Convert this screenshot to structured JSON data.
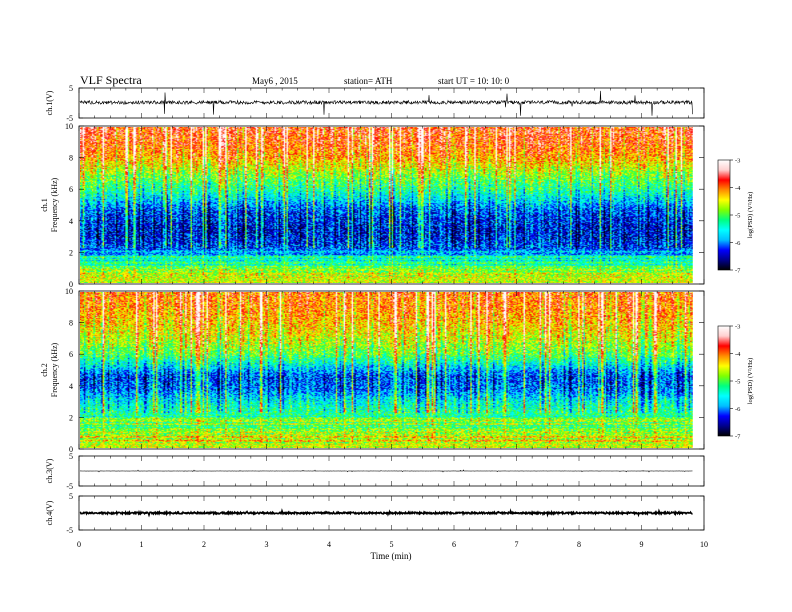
{
  "header": {
    "title": "VLF  Spectra",
    "date": "May6  , 2015",
    "station": "station= ATH",
    "start": "start  UT  =    10: 10: 0"
  },
  "colors": {
    "ink": "#000000",
    "colormap": [
      "#000000",
      "#00008b",
      "#0000ff",
      "#00bfff",
      "#00ffff",
      "#00ff80",
      "#7fff00",
      "#ffff00",
      "#ff8c00",
      "#ff0000",
      "#ffd0d0",
      "#ffffff"
    ]
  },
  "chart_data": [
    {
      "id": "ch1-waveform",
      "type": "line",
      "ylabel": "ch.1(V)",
      "ylim": [
        -5,
        5
      ],
      "yticks": [
        "5",
        "-5"
      ],
      "xlim": [
        0,
        10
      ],
      "data_end_min": 9.82,
      "mean_level_V": 0.2,
      "noise_amplitude_V": 0.6,
      "spike_amplitude_V": 3
    },
    {
      "id": "ch1-spectrogram",
      "type": "heatmap",
      "ylabel": "ch.1\nFrequency (kHz)",
      "ylim": [
        0,
        10
      ],
      "yticks": [
        "0",
        "2",
        "4",
        "6",
        "8",
        "10"
      ],
      "xlim": [
        0,
        10
      ],
      "data_end_min": 9.82,
      "colorbar": {
        "label": "log(PSD) (V²/Hz)",
        "range": [
          -7,
          -3
        ],
        "ticks": [
          "-3",
          "-4",
          "-5",
          "-6",
          "-7"
        ]
      },
      "profile_khz_vs_logpsd": [
        [
          0,
          -4.5
        ],
        [
          0.8,
          -5.0
        ],
        [
          1.6,
          -5.4
        ],
        [
          2.2,
          -6.2
        ],
        [
          3.0,
          -6.4
        ],
        [
          3.6,
          -6.4
        ],
        [
          4.6,
          -6.2
        ],
        [
          5.2,
          -5.8
        ],
        [
          6.0,
          -5.3
        ],
        [
          7.0,
          -4.8
        ],
        [
          8.0,
          -4.2
        ],
        [
          9.0,
          -3.9
        ],
        [
          10,
          -3.8
        ]
      ]
    },
    {
      "id": "ch2-spectrogram",
      "type": "heatmap",
      "ylabel": "ch.2\nFrequency (kHz)",
      "ylim": [
        0,
        10
      ],
      "yticks": [
        "0",
        "2",
        "4",
        "6",
        "8",
        "10"
      ],
      "xlim": [
        0,
        10
      ],
      "data_end_min": 9.82,
      "colorbar": {
        "label": "log(PSD) (V²/Hz)",
        "range": [
          -7,
          -3
        ],
        "ticks": [
          "-3",
          "-4",
          "-5",
          "-6",
          "-7"
        ]
      },
      "profile_khz_vs_logpsd": [
        [
          0,
          -4.4
        ],
        [
          1.0,
          -4.8
        ],
        [
          2.0,
          -5.2
        ],
        [
          3.0,
          -5.6
        ],
        [
          3.8,
          -6.1
        ],
        [
          4.6,
          -6.2
        ],
        [
          5.2,
          -5.7
        ],
        [
          6.0,
          -5.0
        ],
        [
          7.0,
          -4.6
        ],
        [
          8.0,
          -4.3
        ],
        [
          9.0,
          -4.1
        ],
        [
          10,
          -4.0
        ]
      ]
    },
    {
      "id": "ch3-waveform",
      "type": "line",
      "ylabel": "ch.3(V)",
      "ylim": [
        -5,
        5
      ],
      "yticks": [
        "5",
        "-5"
      ],
      "xlim": [
        0,
        10
      ],
      "data_end_min": 9.82,
      "mean_level_V": 0.0,
      "noise_amplitude_V": 0.05,
      "spike_amplitude_V": 0.2
    },
    {
      "id": "ch4-waveform",
      "type": "line",
      "ylabel": "ch.4(V)",
      "ylim": [
        -5,
        5
      ],
      "yticks": [
        "5",
        "-5"
      ],
      "xlim": [
        0,
        10
      ],
      "data_end_min": 9.82,
      "mean_level_V": 0.0,
      "noise_amplitude_V": 0.25,
      "spike_amplitude_V": 0.3
    }
  ],
  "xaxis": {
    "label": "Time  (min)",
    "ticks": [
      "0",
      "1",
      "2",
      "3",
      "4",
      "5",
      "6",
      "7",
      "8",
      "9",
      "10"
    ]
  }
}
